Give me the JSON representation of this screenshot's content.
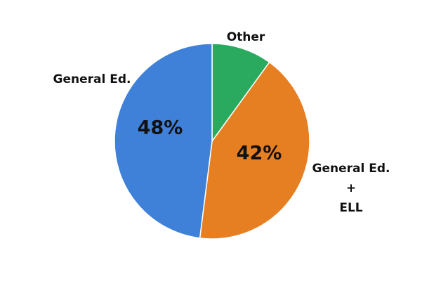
{
  "chart_data": {
    "type": "pie",
    "categories": [
      "Other",
      "General Ed.\n+\nELL",
      "General Ed."
    ],
    "values": [
      10,
      42,
      48
    ],
    "value_labels": [
      null,
      "42%",
      "48%"
    ],
    "colors": [
      "#2aaa5f",
      "#e67e22",
      "#3f80d8"
    ]
  }
}
